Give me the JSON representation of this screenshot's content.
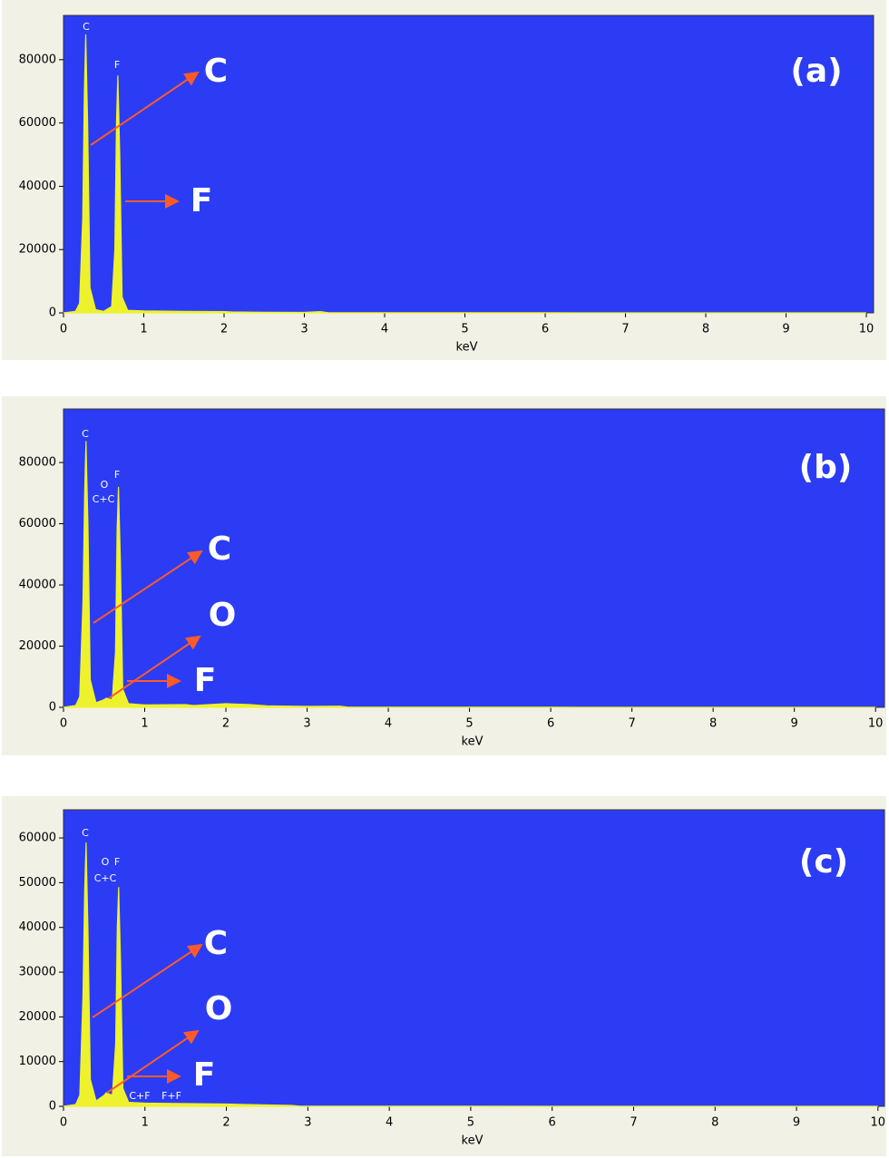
{
  "chart_data": [
    {
      "type": "area",
      "panel_label": "(a)",
      "xlabel": "keV",
      "color": "#eef22c",
      "background": "#2b3cf4",
      "xlim": [
        0,
        10.09
      ],
      "ylim": [
        0,
        94000
      ],
      "xticks": [
        0,
        1,
        2,
        3,
        4,
        5,
        6,
        7,
        8,
        9,
        10
      ],
      "yticks": [
        0,
        20000,
        40000,
        60000,
        80000
      ],
      "x": [
        0,
        0.15,
        0.2,
        0.24,
        0.26,
        0.277,
        0.3,
        0.33,
        0.4,
        0.5,
        0.6,
        0.64,
        0.66,
        0.677,
        0.7,
        0.73,
        0.8,
        1.0,
        1.5,
        2.0,
        2.1,
        2.5,
        3.0,
        3.2,
        3.3,
        4,
        5,
        6,
        7,
        8,
        9,
        10
      ],
      "values": [
        0,
        500,
        3000,
        30000,
        70000,
        88000,
        60000,
        8000,
        1000,
        500,
        2000,
        20000,
        60000,
        75000,
        50000,
        5000,
        800,
        600,
        500,
        400,
        300,
        200,
        150,
        400,
        50,
        30,
        20,
        15,
        10,
        8,
        6,
        5
      ],
      "peak_labels": [
        "C",
        "F"
      ],
      "element_labels": [
        "C",
        "F"
      ]
    },
    {
      "type": "area",
      "panel_label": "(b)",
      "xlabel": "keV",
      "color": "#eef22c",
      "background": "#2b3cf4",
      "xlim": [
        0,
        10.11
      ],
      "ylim": [
        0,
        97500
      ],
      "xticks": [
        0,
        1,
        2,
        3,
        4,
        5,
        6,
        7,
        8,
        9,
        10
      ],
      "yticks": [
        0,
        20000,
        40000,
        60000,
        80000
      ],
      "x": [
        0,
        0.15,
        0.2,
        0.24,
        0.26,
        0.277,
        0.3,
        0.33,
        0.4,
        0.5,
        0.525,
        0.6,
        0.64,
        0.66,
        0.677,
        0.7,
        0.73,
        0.8,
        1.0,
        1.5,
        1.6,
        2.0,
        2.3,
        2.5,
        3.0,
        3.4,
        3.5,
        4,
        5,
        6,
        7,
        8,
        9,
        10
      ],
      "values": [
        0,
        600,
        3500,
        35000,
        70000,
        87000,
        60000,
        9000,
        1500,
        2500,
        3000,
        2500,
        18000,
        58000,
        72000,
        48000,
        6000,
        1200,
        800,
        900,
        600,
        1200,
        900,
        500,
        300,
        400,
        50,
        30,
        20,
        15,
        10,
        8,
        6,
        5
      ],
      "peak_labels": [
        "C",
        "O",
        "C+C",
        "F"
      ],
      "element_labels": [
        "C",
        "O",
        "F"
      ]
    },
    {
      "type": "area",
      "panel_label": "(c)",
      "xlabel": "keV",
      "color": "#eef22c",
      "background": "#2b3cf4",
      "xlim": [
        0,
        10.08
      ],
      "ylim": [
        0,
        66300
      ],
      "xticks": [
        0,
        1,
        2,
        3,
        4,
        5,
        6,
        7,
        8,
        9,
        10
      ],
      "yticks": [
        0,
        10000,
        20000,
        30000,
        40000,
        50000,
        60000
      ],
      "x": [
        0,
        0.15,
        0.2,
        0.24,
        0.26,
        0.277,
        0.3,
        0.33,
        0.4,
        0.5,
        0.525,
        0.6,
        0.64,
        0.66,
        0.677,
        0.7,
        0.73,
        0.8,
        1.0,
        1.5,
        2.0,
        2.5,
        2.8,
        2.9,
        4,
        5,
        6,
        7,
        8,
        9,
        10
      ],
      "values": [
        0,
        400,
        2500,
        25000,
        48000,
        59000,
        40000,
        6000,
        1200,
        2500,
        3000,
        2500,
        14000,
        40000,
        49000,
        33000,
        4000,
        900,
        700,
        600,
        500,
        300,
        200,
        30,
        20,
        15,
        10,
        8,
        6,
        5,
        4
      ],
      "peak_labels": [
        "C",
        "O",
        "F",
        "C+C",
        "C+F",
        "F+F"
      ],
      "element_labels": [
        "C",
        "O",
        "F"
      ]
    }
  ]
}
